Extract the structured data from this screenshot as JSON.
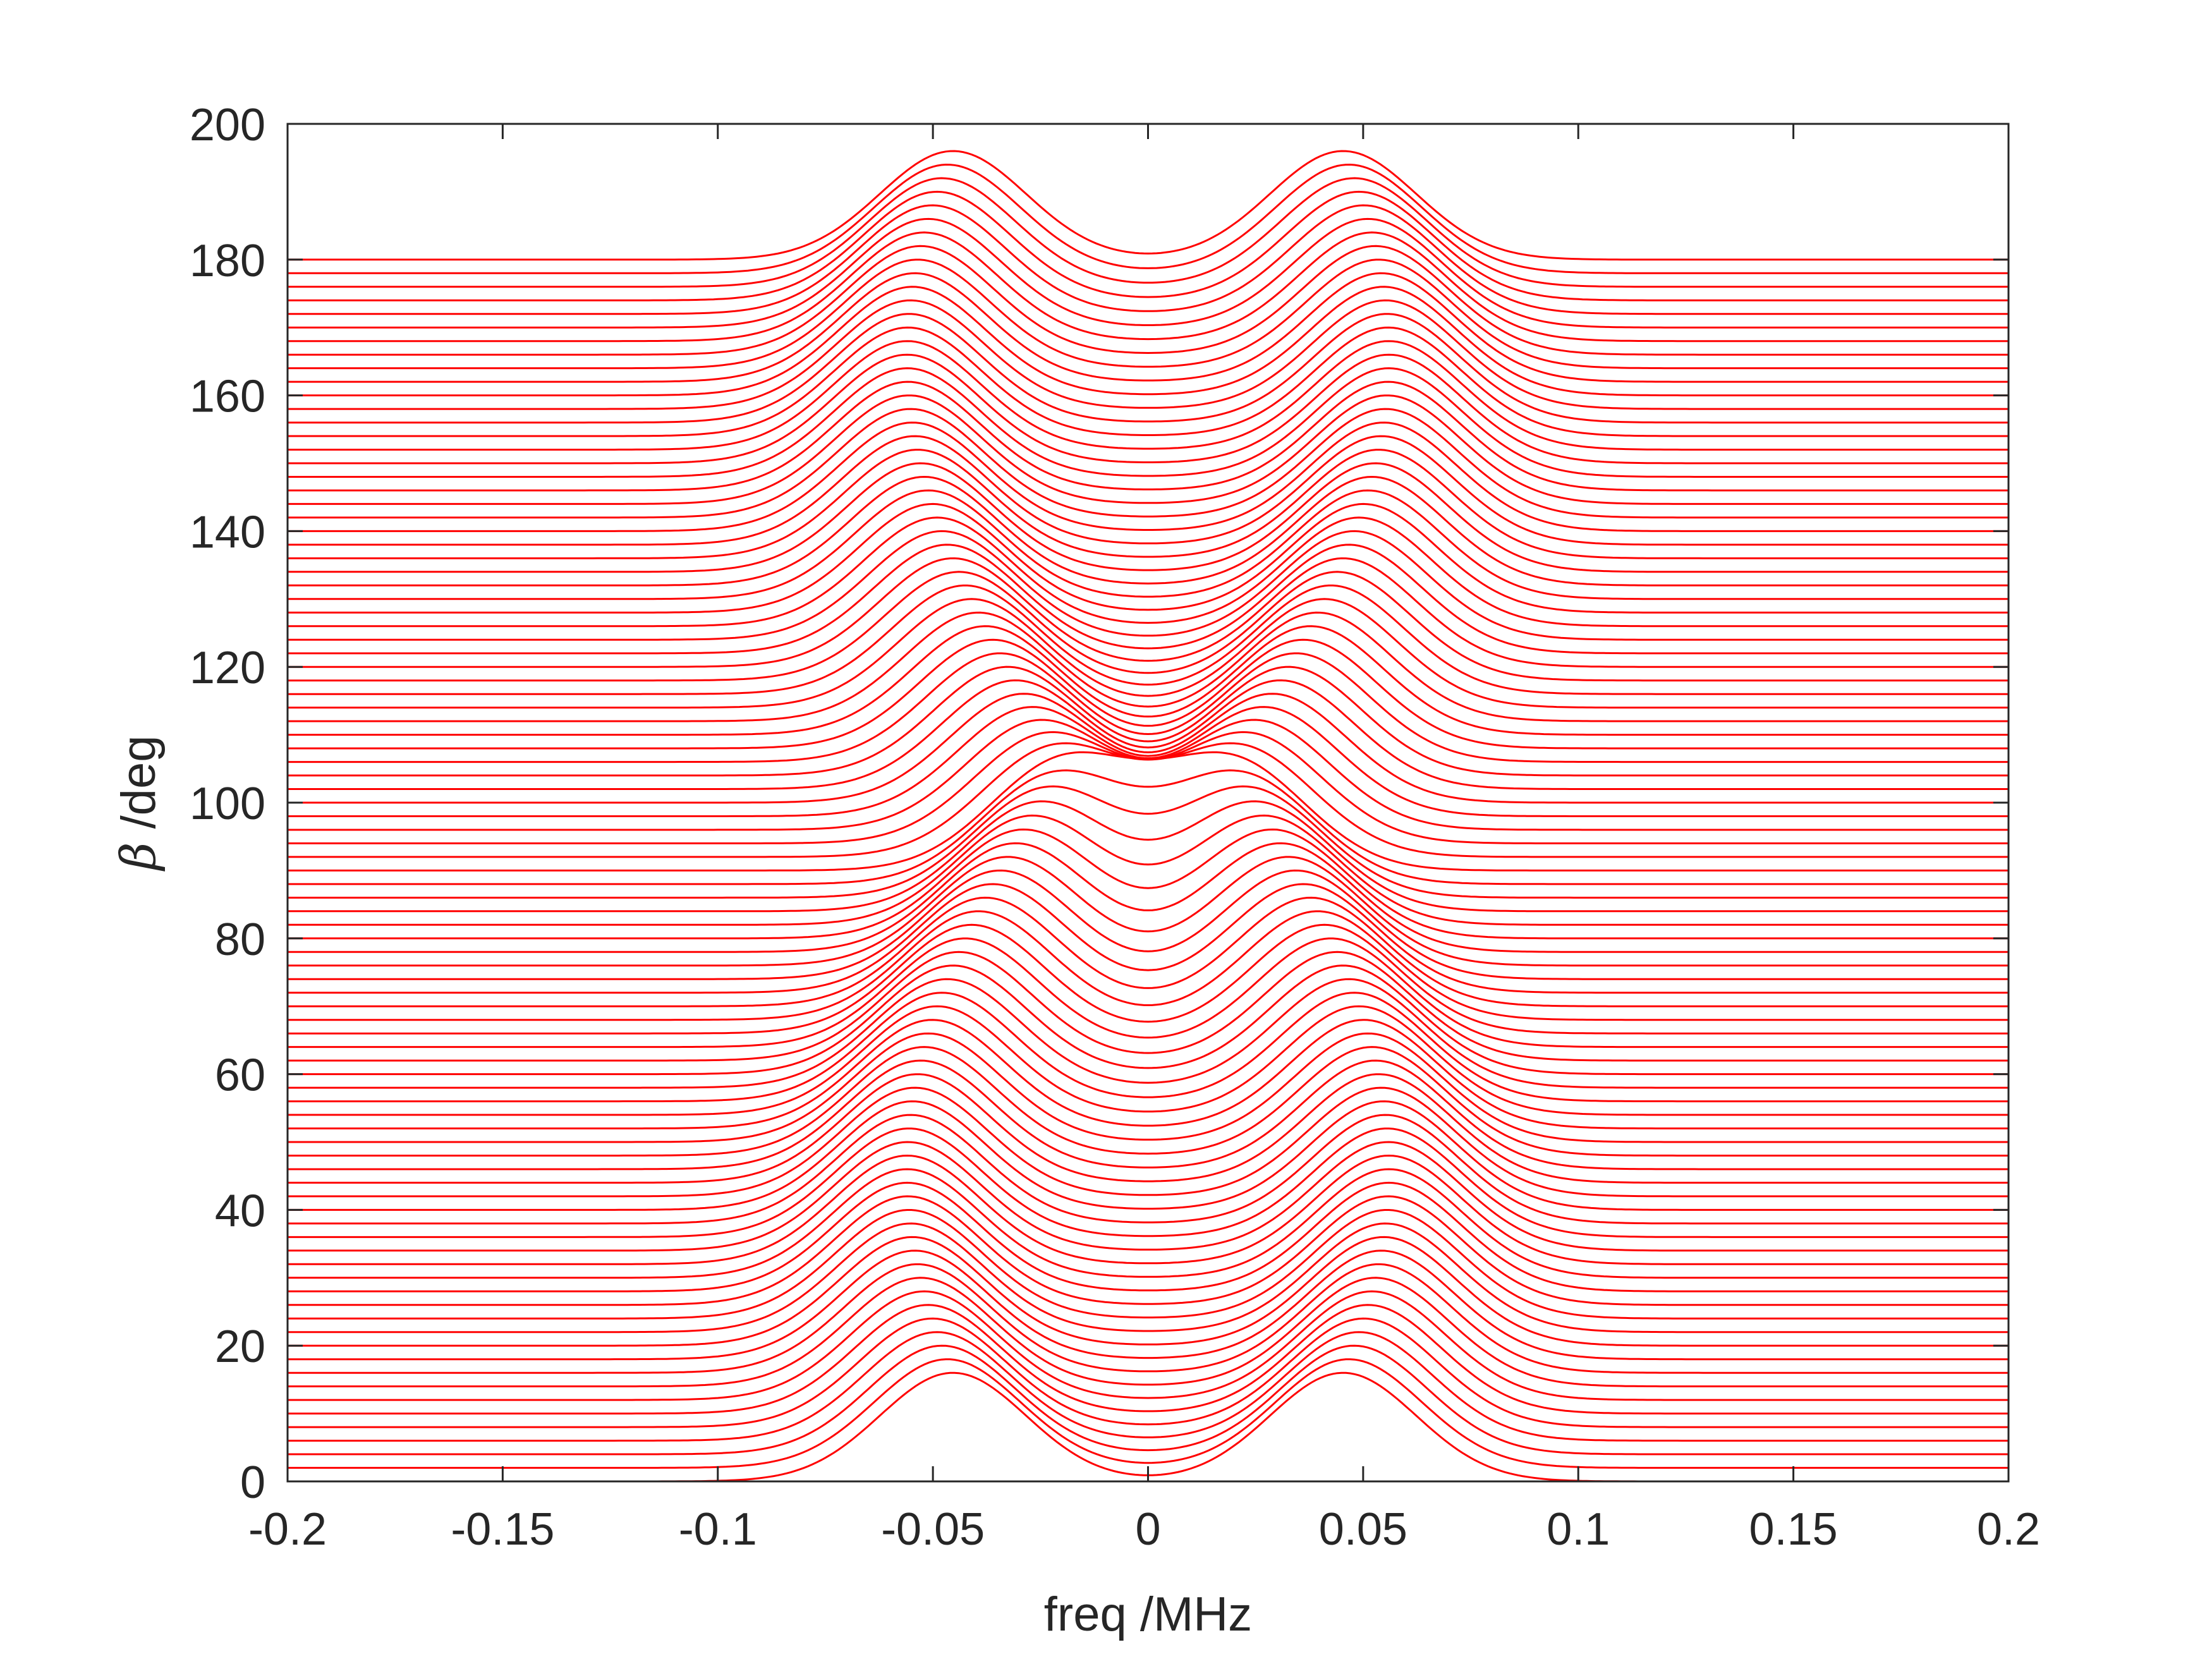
{
  "chart_data": {
    "type": "line",
    "title": "",
    "xlabel": "freq /MHz",
    "ylabel_symbol": "β",
    "ylabel_text": " /deg",
    "xlim": [
      -0.2,
      0.2
    ],
    "ylim": [
      0,
      200
    ],
    "xticks": [
      -0.2,
      -0.15,
      -0.1,
      -0.05,
      0,
      0.05,
      0.1,
      0.15,
      0.2
    ],
    "xtick_labels": [
      "-0.2",
      "-0.15",
      "-0.1",
      "-0.05",
      "0",
      "0.05",
      "0.1",
      "0.15",
      "0.2"
    ],
    "yticks": [
      0,
      20,
      40,
      60,
      80,
      100,
      120,
      140,
      160,
      180,
      200
    ],
    "ytick_labels": [
      "0",
      "20",
      "40",
      "60",
      "80",
      "100",
      "120",
      "140",
      "160",
      "180",
      "200"
    ],
    "grid": false,
    "legend": "none",
    "line_color": "#ff0000",
    "series_description": "stacked spectra, one per beta step of 2 deg from 0 to 180 deg; each trace is a baseline offset equal to beta plus a spectrum with peaks near ±0.056 MHz (splitting collapses toward 0 near beta ≈ 60–90 deg and 150–160 deg)",
    "beta_start": 0,
    "beta_end": 180,
    "beta_step": 2,
    "peak_height": 16,
    "peak_width_mhz": 0.024,
    "max_splitting_mhz": 0.056
  }
}
